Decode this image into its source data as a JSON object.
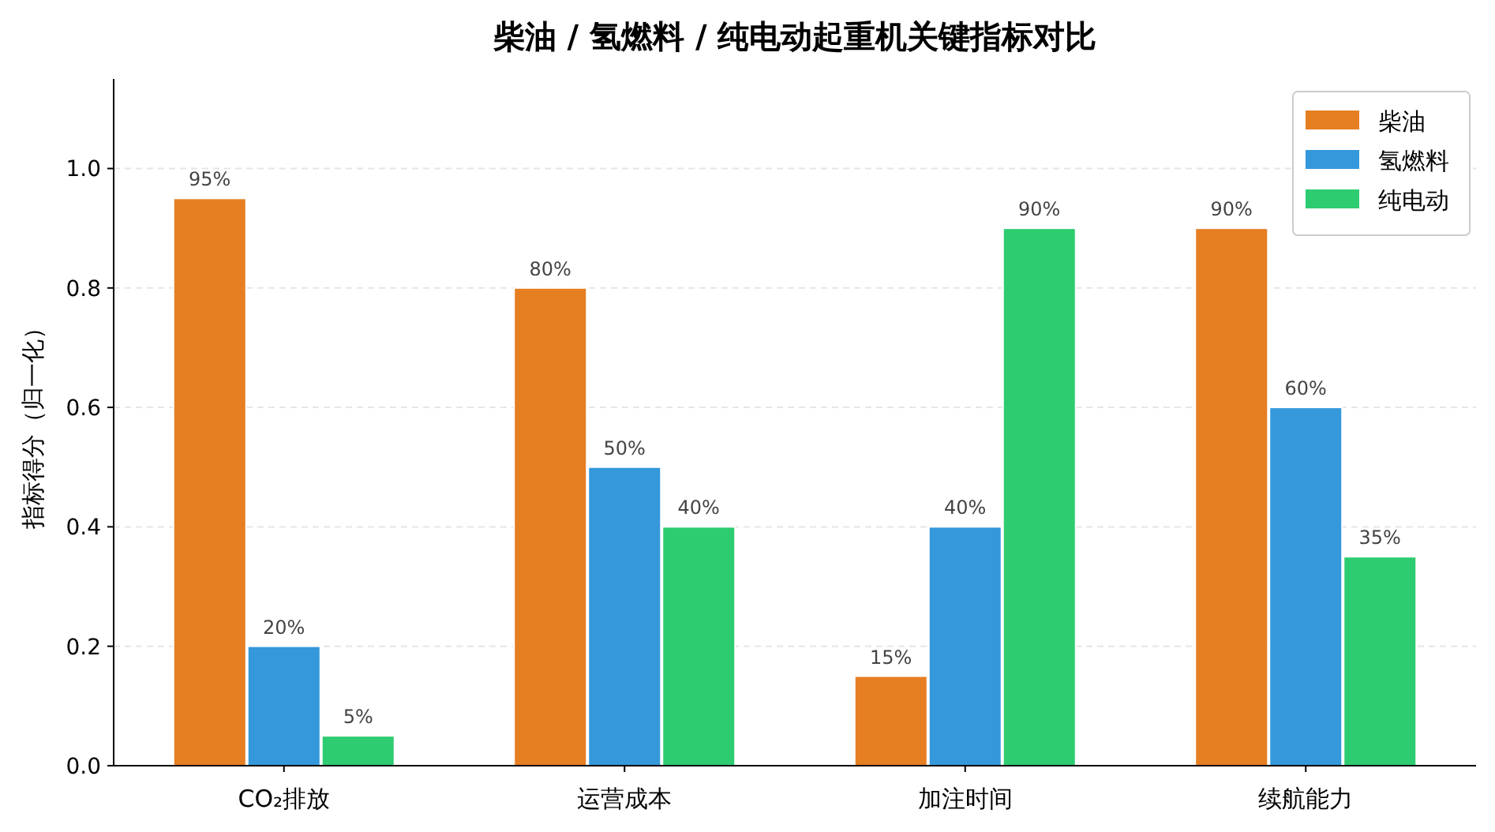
{
  "chart_data": {
    "type": "bar",
    "title": "柴油 / 氢燃料 / 纯电动起重机关键指标对比",
    "ylabel": "指标得分（归一化）",
    "categories": [
      "CO₂排放",
      "运营成本",
      "加注时间",
      "续航能力"
    ],
    "series": [
      {
        "name": "柴油",
        "color": "#e67e22",
        "values": [
          0.95,
          0.8,
          0.15,
          0.9
        ],
        "value_labels": [
          "95%",
          "80%",
          "15%",
          "90%"
        ]
      },
      {
        "name": "氢燃料",
        "color": "#3498db",
        "values": [
          0.2,
          0.5,
          0.4,
          0.6
        ],
        "value_labels": [
          "20%",
          "50%",
          "40%",
          "60%"
        ]
      },
      {
        "name": "纯电动",
        "color": "#2ecc71",
        "values": [
          0.05,
          0.4,
          0.9,
          0.35
        ],
        "value_labels": [
          "5%",
          "40%",
          "90%",
          "35%"
        ]
      }
    ],
    "ylim": [
      0,
      1.15
    ],
    "yticks": [
      {
        "value": 0,
        "label": "0.0"
      },
      {
        "value": 0.2,
        "label": "0.2"
      },
      {
        "value": 0.4,
        "label": "0.4"
      },
      {
        "value": 0.6,
        "label": "0.6"
      },
      {
        "value": 0.8,
        "label": "0.8"
      },
      {
        "value": 1,
        "label": "1.0"
      }
    ],
    "grid": "y",
    "legend": "top right"
  }
}
